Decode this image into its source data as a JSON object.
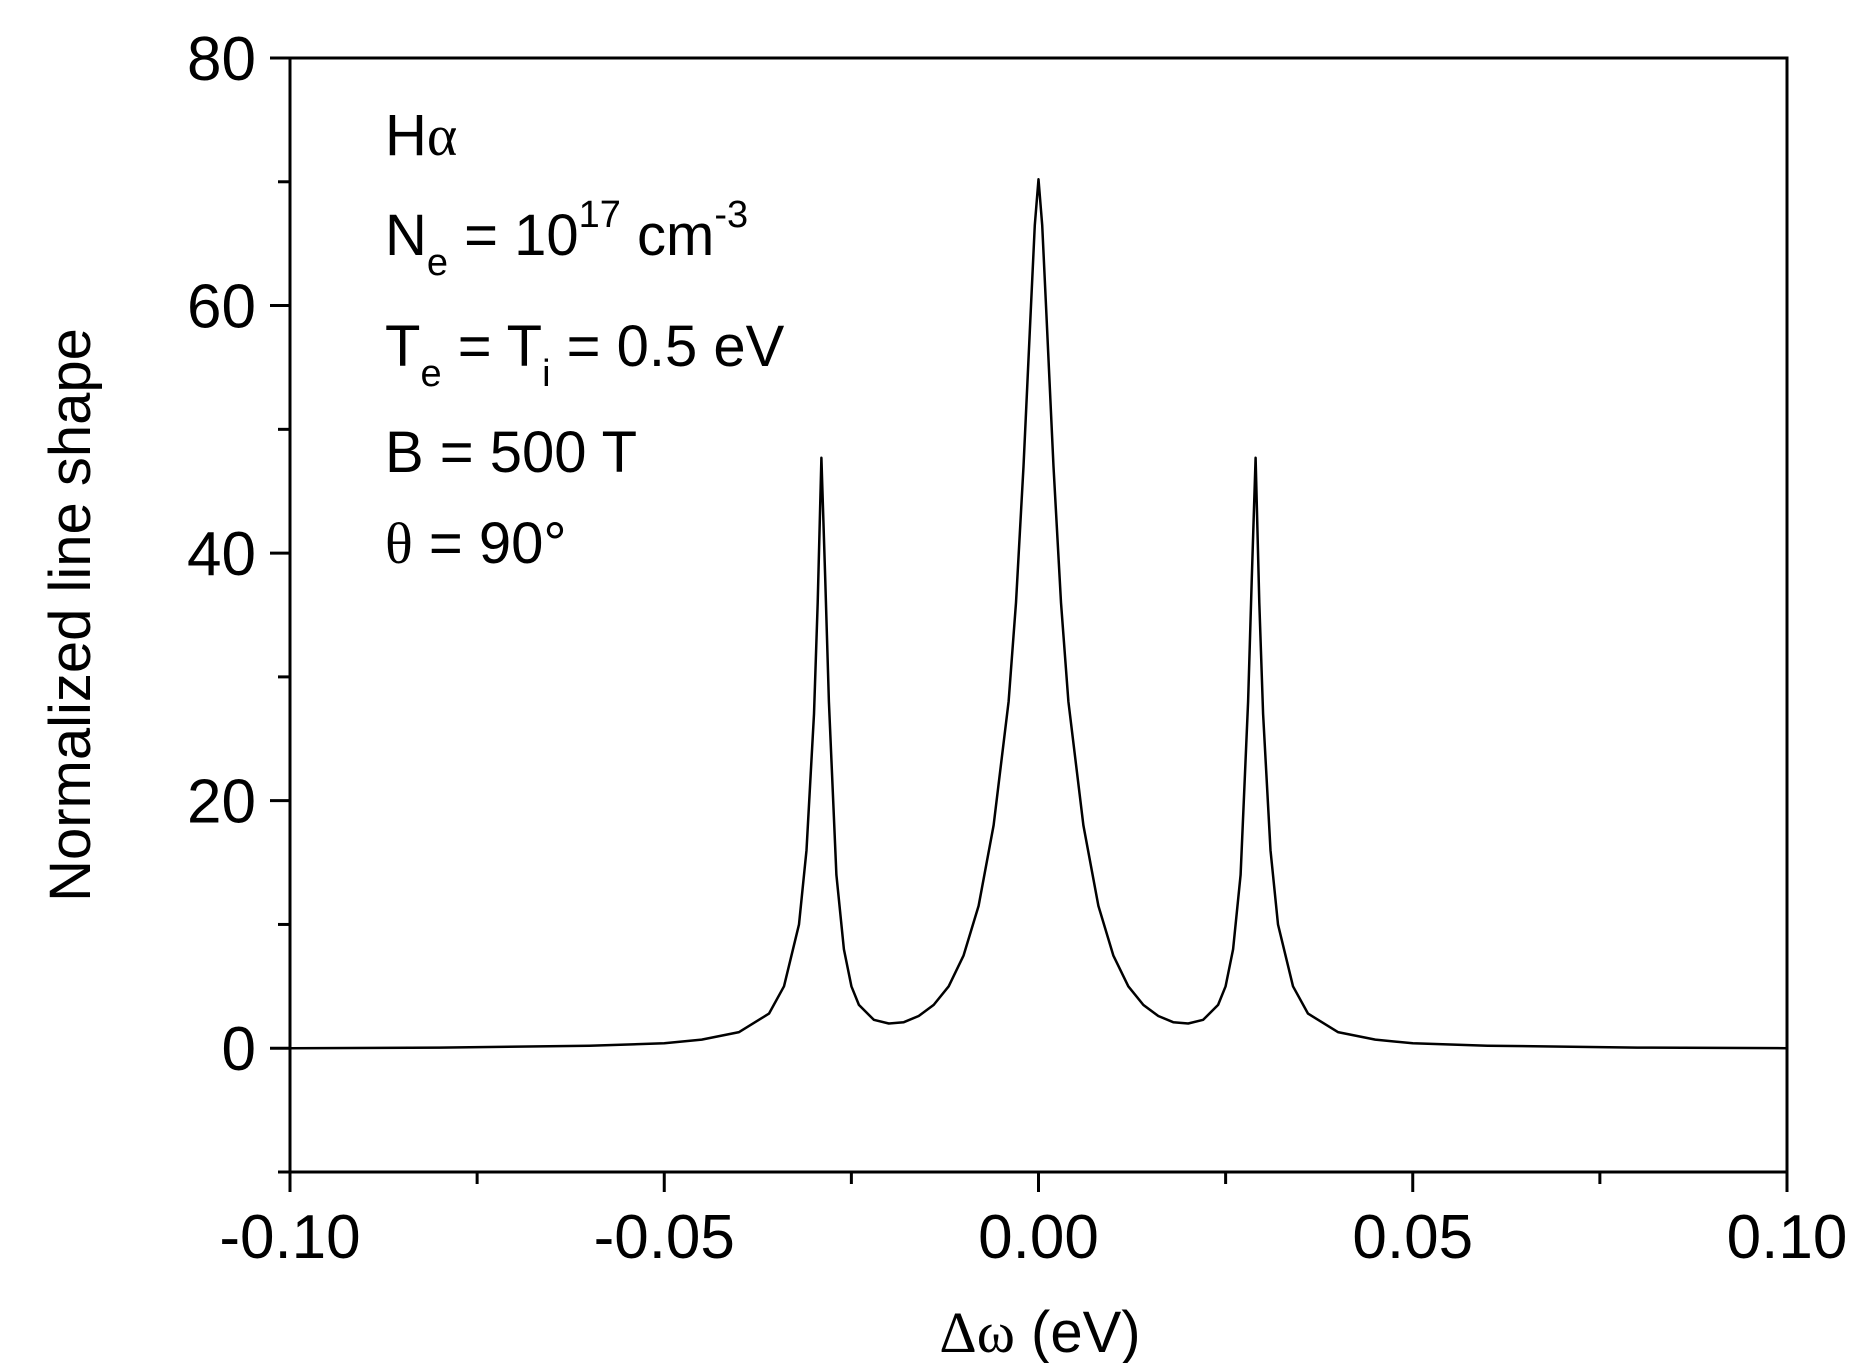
{
  "chart_data": {
    "type": "line",
    "xlabel_symbol": "Δω",
    "xlabel_unit": " (eV)",
    "ylabel": "Normalized line shape",
    "xlim": [
      -0.1,
      0.1
    ],
    "ylim": [
      -10,
      80
    ],
    "xticks": [
      -0.1,
      -0.05,
      0.0,
      0.05,
      0.1
    ],
    "xtick_labels": [
      "-0.10",
      "-0.05",
      "0.00",
      "0.05",
      "0.10"
    ],
    "xminor_step": 0.025,
    "yticks": [
      0,
      20,
      40,
      60,
      80
    ],
    "ytick_labels": [
      "0",
      "20",
      "40",
      "60",
      "80"
    ],
    "yminor_step": 10,
    "grid": false,
    "line_color": "#000000",
    "peaks": [
      {
        "x": -0.029,
        "y": 47.7
      },
      {
        "x": 0.0,
        "y": 70.2
      },
      {
        "x": 0.029,
        "y": 47.7
      }
    ],
    "series": [
      {
        "x": [
          -0.1,
          -0.08,
          -0.06,
          -0.05,
          -0.045,
          -0.04,
          -0.036,
          -0.034,
          -0.032,
          -0.031,
          -0.03,
          -0.0295,
          -0.029,
          -0.0285,
          -0.028,
          -0.027,
          -0.026,
          -0.025,
          -0.024,
          -0.022,
          -0.02,
          -0.018,
          -0.016,
          -0.014,
          -0.012,
          -0.01,
          -0.008,
          -0.006,
          -0.004,
          -0.003,
          -0.002,
          -0.001,
          -0.0005,
          0.0,
          0.0005,
          0.001,
          0.002,
          0.003,
          0.004,
          0.006,
          0.008,
          0.01,
          0.012,
          0.014,
          0.016,
          0.018,
          0.02,
          0.022,
          0.024,
          0.025,
          0.026,
          0.027,
          0.028,
          0.0285,
          0.029,
          0.0295,
          0.03,
          0.031,
          0.032,
          0.034,
          0.036,
          0.04,
          0.045,
          0.05,
          0.06,
          0.08,
          0.1
        ],
        "y": [
          0.0,
          0.05,
          0.2,
          0.4,
          0.7,
          1.3,
          2.8,
          5.0,
          10.0,
          16.0,
          27.0,
          36.0,
          47.7,
          38.0,
          28.0,
          14.0,
          8.0,
          5.0,
          3.5,
          2.3,
          2.0,
          2.1,
          2.6,
          3.5,
          5.0,
          7.5,
          11.5,
          18.0,
          28.0,
          36.0,
          47.0,
          60.0,
          66.5,
          70.2,
          66.5,
          60.0,
          47.0,
          36.0,
          28.0,
          18.0,
          11.5,
          7.5,
          5.0,
          3.5,
          2.6,
          2.1,
          2.0,
          2.3,
          3.5,
          5.0,
          8.0,
          14.0,
          28.0,
          38.0,
          47.7,
          36.0,
          27.0,
          16.0,
          10.0,
          5.0,
          2.8,
          1.3,
          0.7,
          0.4,
          0.2,
          0.05,
          0.0
        ]
      }
    ]
  },
  "annotations": {
    "line1_main": "H",
    "line1_greek": "α",
    "line2_a": "N",
    "line2_sub": "e",
    "line2_b": " = 10",
    "line2_sup": "17",
    "line2_c": " cm",
    "line2_sup2": "-3",
    "line3_a": "T",
    "line3_sub1": "e",
    "line3_b": " = T",
    "line3_sub2": "i",
    "line3_c": " = 0.5 eV",
    "line4": "B = 500 T",
    "line5_greek": "θ",
    "line5_rest": " = 90°"
  }
}
